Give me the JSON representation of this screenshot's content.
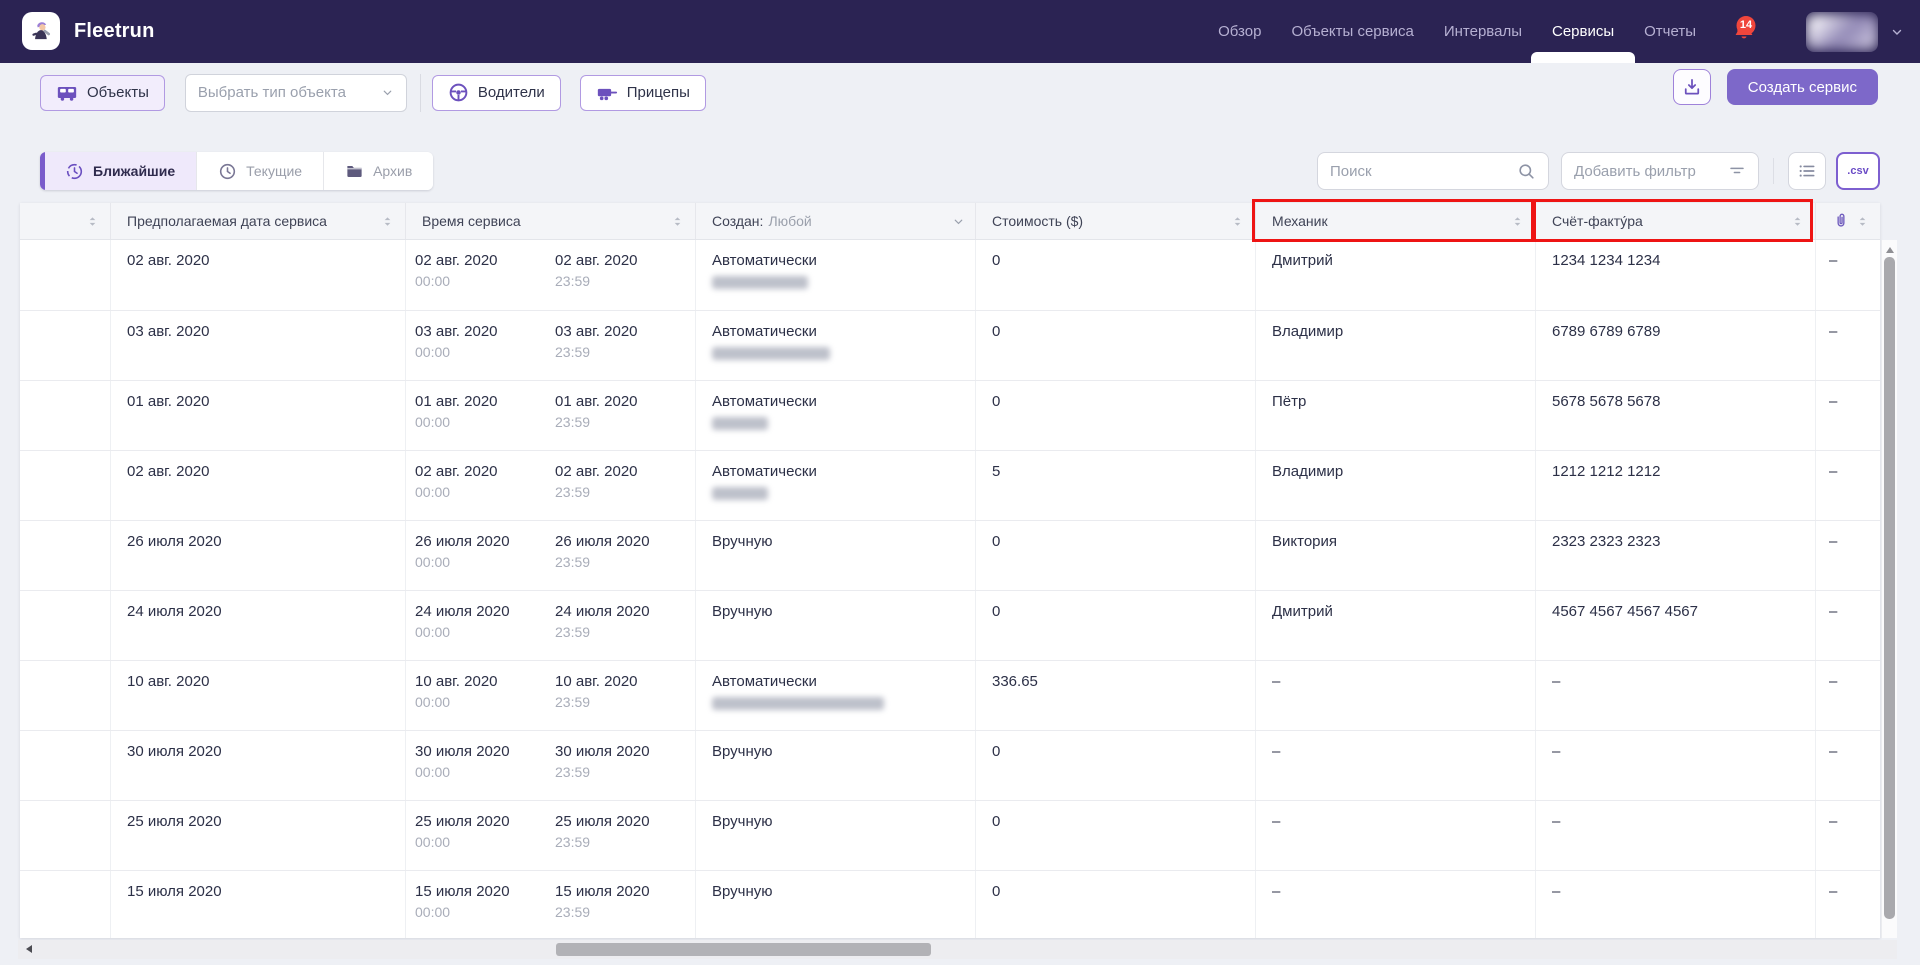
{
  "header": {
    "app_title": "Fleetrun",
    "nav": [
      {
        "label": "Обзор",
        "active": false
      },
      {
        "label": "Объекты сервиса",
        "active": false
      },
      {
        "label": "Интервалы",
        "active": false
      },
      {
        "label": "Сервисы",
        "active": true
      },
      {
        "label": "Отчеты",
        "active": false
      }
    ],
    "notifications_count": "14",
    "icons": {
      "logo": "fleetrun-mascot-icon",
      "notifications": "bell-icon",
      "account_menu": "chevron-down-icon"
    }
  },
  "toolbar": {
    "left": [
      {
        "label": "Объекты",
        "icon": "van-icon"
      },
      {
        "placeholder": "Выбрать тип объекта",
        "icon": "chevron-down-icon"
      },
      {
        "label": "Водители",
        "icon": "steering-wheel-icon"
      },
      {
        "label": "Прицепы",
        "icon": "trailer-icon"
      }
    ],
    "export_icon": "download-icon",
    "create_service_label": "Создать сервис"
  },
  "tabs": [
    {
      "label": "Ближайшие",
      "icon": "history-clock-icon",
      "active": true
    },
    {
      "label": "Текущие",
      "icon": "clock-icon",
      "active": false
    },
    {
      "label": "Архив",
      "icon": "folder-icon",
      "active": false
    }
  ],
  "controls": {
    "search_placeholder": "Поиск",
    "search_icon": "search-icon",
    "filter_placeholder": "Добавить фильтр",
    "filter_icon": "filter-icon",
    "view_icon": "list-icon",
    "csv_label": ".csv"
  },
  "table": {
    "columns": {
      "expected_date": "Предполагаемая дата сервиса",
      "service_time": "Время сервиса",
      "created_label": "Создан:",
      "created_value": "Любой",
      "cost": "Стоимость ($)",
      "mechanic": "Механик",
      "invoice": "Счёт-факту́ра",
      "attachment_icon": "paperclip-icon",
      "sort_icon": "sort-icon"
    },
    "highlighted_columns": [
      "Механик",
      "Счёт-факту́ра"
    ],
    "rows": [
      {
        "expected_date": "02 авг. 2020",
        "from_date": "02 авг. 2020",
        "from_time": "00:00",
        "to_date": "02 авг. 2020",
        "to_time": "23:59",
        "created": "Автоматически",
        "created_blur_width": 96,
        "cost": "0",
        "mechanic": "Дмитрий",
        "invoice": "1234 1234 1234",
        "attachment": "–"
      },
      {
        "expected_date": "03 авг. 2020",
        "from_date": "03 авг. 2020",
        "from_time": "00:00",
        "to_date": "03 авг. 2020",
        "to_time": "23:59",
        "created": "Автоматически",
        "created_blur_width": 118,
        "cost": "0",
        "mechanic": "Владимир",
        "invoice": "6789 6789 6789",
        "attachment": "–"
      },
      {
        "expected_date": "01 авг. 2020",
        "from_date": "01 авг. 2020",
        "from_time": "00:00",
        "to_date": "01 авг. 2020",
        "to_time": "23:59",
        "created": "Автоматически",
        "created_blur_width": 56,
        "cost": "0",
        "mechanic": "Пётр",
        "invoice": "5678 5678 5678",
        "attachment": "–"
      },
      {
        "expected_date": "02 авг. 2020",
        "from_date": "02 авг. 2020",
        "from_time": "00:00",
        "to_date": "02 авг. 2020",
        "to_time": "23:59",
        "created": "Автоматически",
        "created_blur_width": 56,
        "cost": "5",
        "mechanic": "Владимир",
        "invoice": "1212 1212 1212",
        "attachment": "–"
      },
      {
        "expected_date": "26 июля 2020",
        "from_date": "26 июля 2020",
        "from_time": "00:00",
        "to_date": "26 июля 2020",
        "to_time": "23:59",
        "created": "Вручную",
        "created_blur_width": 0,
        "cost": "0",
        "mechanic": "Виктория",
        "invoice": "2323 2323 2323",
        "attachment": "–"
      },
      {
        "expected_date": "24 июля 2020",
        "from_date": "24 июля 2020",
        "from_time": "00:00",
        "to_date": "24 июля 2020",
        "to_time": "23:59",
        "created": "Вручную",
        "created_blur_width": 0,
        "cost": "0",
        "mechanic": "Дмитрий",
        "invoice": "4567 4567 4567 4567",
        "attachment": "–"
      },
      {
        "expected_date": "10 авг. 2020",
        "from_date": "10 авг. 2020",
        "from_time": "00:00",
        "to_date": "10 авг. 2020",
        "to_time": "23:59",
        "created": "Автоматически",
        "created_blur_width": 172,
        "cost": "336.65",
        "mechanic": "–",
        "invoice": "–",
        "attachment": "–"
      },
      {
        "expected_date": "30 июля 2020",
        "from_date": "30 июля 2020",
        "from_time": "00:00",
        "to_date": "30 июля 2020",
        "to_time": "23:59",
        "created": "Вручную",
        "created_blur_width": 0,
        "cost": "0",
        "mechanic": "–",
        "invoice": "–",
        "attachment": "–"
      },
      {
        "expected_date": "25 июля 2020",
        "from_date": "25 июля 2020",
        "from_time": "00:00",
        "to_date": "25 июля 2020",
        "to_time": "23:59",
        "created": "Вручную",
        "created_blur_width": 0,
        "cost": "0",
        "mechanic": "–",
        "invoice": "–",
        "attachment": "–"
      },
      {
        "expected_date": "15 июля 2020",
        "from_date": "15 июля 2020",
        "from_time": "00:00",
        "to_date": "15 июля 2020",
        "to_time": "23:59",
        "created": "Вручную",
        "created_blur_width": 0,
        "cost": "0",
        "mechanic": "–",
        "invoice": "–",
        "attachment": "–"
      }
    ]
  },
  "colors": {
    "header_bg": "#2b2353",
    "accent_purple": "#7d68c9",
    "highlight_red": "#ee1414",
    "notification_red": "#f0463c",
    "page_bg": "#eef0f5"
  }
}
